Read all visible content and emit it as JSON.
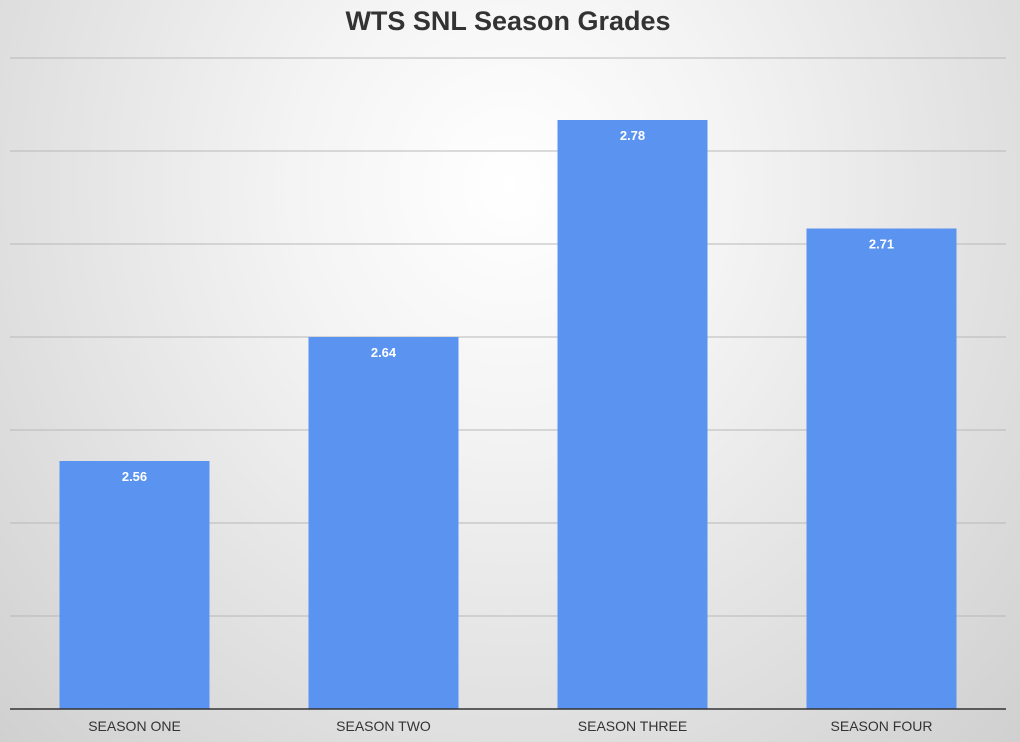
{
  "chart_data": {
    "type": "bar",
    "title": "WTS SNL Season Grades",
    "categories": [
      "SEASON ONE",
      "SEASON TWO",
      "SEASON THREE",
      "SEASON FOUR"
    ],
    "values": [
      2.56,
      2.64,
      2.78,
      2.71
    ],
    "data_labels": [
      "2.56",
      "2.64",
      "2.78",
      "2.71"
    ],
    "xlabel": "",
    "ylabel": "",
    "ylim": [
      2.4,
      2.82
    ],
    "grid": true,
    "legend": "none",
    "colors": {
      "bar": "#5a93f0"
    }
  }
}
